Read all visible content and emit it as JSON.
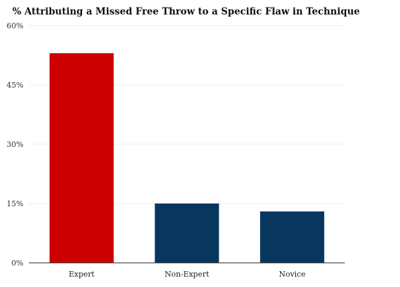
{
  "chart_data": {
    "type": "bar",
    "title": "% Attributing a Missed Free Throw to a Specific Flaw in Technique",
    "xlabel": "",
    "ylabel": "",
    "categories": [
      "Expert",
      "Non-Expert",
      "Novice"
    ],
    "values": [
      53,
      15,
      13
    ],
    "colors": [
      "#cc0000",
      "#08365f",
      "#08365f"
    ],
    "ylim": [
      0,
      60
    ],
    "yticks": [
      0,
      15,
      30,
      45,
      60
    ],
    "ytick_labels": [
      "0%",
      "15%",
      "30%",
      "45%",
      "60%"
    ],
    "grid": true
  }
}
